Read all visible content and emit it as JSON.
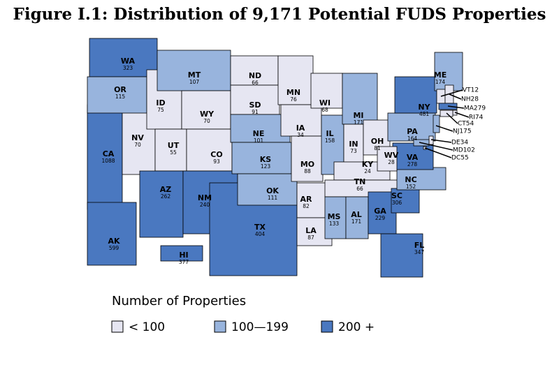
{
  "chart_data": {
    "type": "choropleth",
    "title": "Figure I.1:   Distribution of 9,171 Potential FUDS Properties",
    "legend_title": "Number of Properties",
    "legend": [
      {
        "label": "< 100",
        "color": "#e6e6f2"
      },
      {
        "label": "100—199",
        "color": "#98b4dd"
      },
      {
        "label": "200 +",
        "color": "#4a78c0"
      }
    ],
    "states": [
      {
        "name": "CA",
        "count": 1088,
        "color": "#4a78c0"
      },
      {
        "name": "NV",
        "count": 70,
        "color": "#e6e6f2"
      },
      {
        "name": "WA",
        "count": 323,
        "color": "#4a78c0"
      },
      {
        "name": "OR",
        "count": 115,
        "color": "#98b4dd"
      },
      {
        "name": "ID",
        "count": 75,
        "color": "#e6e6f2"
      },
      {
        "name": "MT",
        "count": 107,
        "color": "#98b4dd"
      },
      {
        "name": "WY",
        "count": 70,
        "color": "#e6e6f2"
      },
      {
        "name": "UT",
        "count": 55,
        "color": "#e6e6f2"
      },
      {
        "name": "CO",
        "count": 93,
        "color": "#e6e6f2"
      },
      {
        "name": "AZ",
        "count": 262,
        "color": "#4a78c0"
      },
      {
        "name": "NM",
        "count": 240,
        "color": "#4a78c0"
      },
      {
        "name": "TX",
        "count": 404,
        "color": "#4a78c0"
      },
      {
        "name": "ND",
        "count": 66,
        "color": "#e6e6f2"
      },
      {
        "name": "SD",
        "count": 91,
        "color": "#e6e6f2"
      },
      {
        "name": "NE",
        "count": 101,
        "color": "#98b4dd"
      },
      {
        "name": "KS",
        "count": 123,
        "color": "#98b4dd"
      },
      {
        "name": "OK",
        "count": 111,
        "color": "#98b4dd"
      },
      {
        "name": "MN",
        "count": 76,
        "color": "#e6e6f2"
      },
      {
        "name": "IA",
        "count": 34,
        "color": "#e6e6f2"
      },
      {
        "name": "MO",
        "count": 88,
        "color": "#e6e6f2"
      },
      {
        "name": "AR",
        "count": 82,
        "color": "#e6e6f2"
      },
      {
        "name": "LA",
        "count": 87,
        "color": "#e6e6f2"
      },
      {
        "name": "WI",
        "count": 68,
        "color": "#e6e6f2"
      },
      {
        "name": "IL",
        "count": 158,
        "color": "#98b4dd"
      },
      {
        "name": "MI",
        "count": 171,
        "color": "#98b4dd"
      },
      {
        "name": "IN",
        "count": 73,
        "color": "#e6e6f2"
      },
      {
        "name": "OH",
        "count": 81,
        "color": "#e6e6f2"
      },
      {
        "name": "KY",
        "count": 24,
        "color": "#e6e6f2"
      },
      {
        "name": "TN",
        "count": 66,
        "color": "#e6e6f2"
      },
      {
        "name": "MS",
        "count": 133,
        "color": "#98b4dd"
      },
      {
        "name": "AL",
        "count": 171,
        "color": "#98b4dd"
      },
      {
        "name": "GA",
        "count": 229,
        "color": "#4a78c0"
      },
      {
        "name": "FL",
        "count": 347,
        "color": "#4a78c0"
      },
      {
        "name": "SC",
        "count": 306,
        "color": "#4a78c0"
      },
      {
        "name": "NC",
        "count": 152,
        "color": "#98b4dd"
      },
      {
        "name": "VA",
        "count": 278,
        "color": "#4a78c0"
      },
      {
        "name": "WV",
        "count": 28,
        "color": "#e6e6f2"
      },
      {
        "name": "PA",
        "count": 164,
        "color": "#98b4dd"
      },
      {
        "name": "NY",
        "count": 481,
        "color": "#4a78c0"
      },
      {
        "name": "ME",
        "count": 174,
        "color": "#98b4dd"
      },
      {
        "name": "VT",
        "count": 12,
        "color": "#e6e6f2"
      },
      {
        "name": "NH",
        "count": 28,
        "color": "#e6e6f2"
      },
      {
        "name": "MA",
        "count": 279,
        "color": "#4a78c0"
      },
      {
        "name": "RI",
        "count": 74,
        "color": "#e6e6f2"
      },
      {
        "name": "CT",
        "count": 54,
        "color": "#e6e6f2"
      },
      {
        "name": "NJ",
        "count": 175,
        "color": "#98b4dd"
      },
      {
        "name": "DE",
        "count": 34,
        "color": "#e6e6f2"
      },
      {
        "name": "MD",
        "count": 102,
        "color": "#98b4dd"
      },
      {
        "name": "DC",
        "count": 55,
        "color": "#e6e6f2"
      },
      {
        "name": "AK",
        "count": 599,
        "color": "#4a78c0"
      },
      {
        "name": "HI",
        "count": 377,
        "color": "#4a78c0"
      }
    ]
  }
}
